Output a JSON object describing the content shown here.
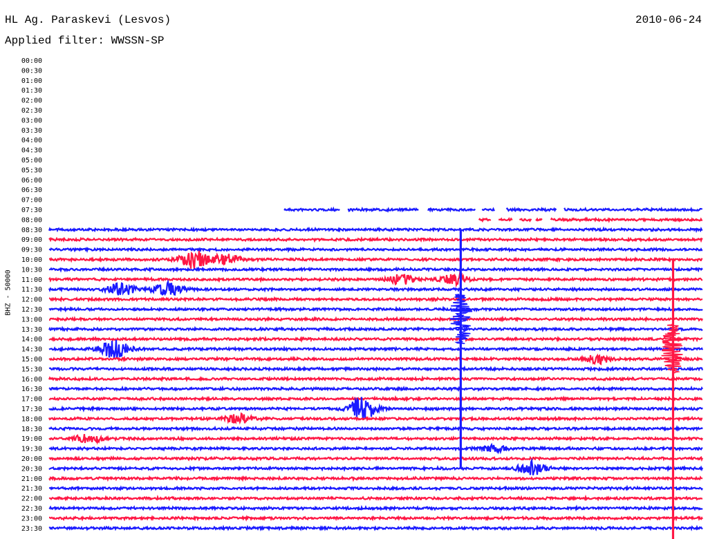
{
  "header": {
    "station": "HL Ag. Paraskevi (Lesvos)",
    "filter": "Applied filter: WWSSN-SP",
    "date": "2010-06-24"
  },
  "chart_data": {
    "type": "line",
    "title": "HL Ag. Paraskevi (Lesvos)",
    "subtitle": "Applied filter: WWSSN-SP",
    "ylabel": "BHZ - 50000",
    "date": "2010-06-24",
    "row_labels": [
      "00:00",
      "00:30",
      "01:00",
      "01:30",
      "02:00",
      "02:30",
      "03:00",
      "03:30",
      "04:00",
      "04:30",
      "05:00",
      "05:30",
      "06:00",
      "06:30",
      "07:00",
      "07:30",
      "08:00",
      "08:30",
      "09:00",
      "09:30",
      "10:00",
      "10:30",
      "11:00",
      "11:30",
      "12:00",
      "12:30",
      "13:00",
      "13:30",
      "14:00",
      "14:30",
      "15:00",
      "15:30",
      "16:00",
      "16:30",
      "17:00",
      "17:30",
      "18:00",
      "18:30",
      "19:00",
      "19:30",
      "20:00",
      "20:30",
      "21:00",
      "21:30",
      "22:00",
      "22:30",
      "23:00",
      "23:30"
    ],
    "row_minutes": 30,
    "record_start": "07:30",
    "record_start_fraction": 0.36,
    "trace_colors": [
      "#ff1744",
      "#1a1aff"
    ],
    "gaps": [
      {
        "row": "07:30",
        "fractions": [
          [
            0.445,
            0.457
          ],
          [
            0.565,
            0.58
          ],
          [
            0.653,
            0.663
          ],
          [
            0.683,
            0.7
          ],
          [
            0.777,
            0.788
          ]
        ]
      },
      {
        "row": "08:00",
        "fractions": [
          [
            0.0,
            0.658
          ],
          [
            0.676,
            0.688
          ],
          [
            0.71,
            0.72
          ],
          [
            0.738,
            0.745
          ],
          [
            0.755,
            0.768
          ]
        ]
      }
    ],
    "events": [
      {
        "row": "10:00",
        "at": 0.22,
        "amplitude": 14
      },
      {
        "row": "10:00",
        "at": 0.27,
        "amplitude": 8
      },
      {
        "row": "11:00",
        "at": 0.54,
        "amplitude": 7
      },
      {
        "row": "11:00",
        "at": 0.62,
        "amplitude": 8
      },
      {
        "row": "11:30",
        "at": 0.11,
        "amplitude": 9
      },
      {
        "row": "11:30",
        "at": 0.18,
        "amplitude": 10
      },
      {
        "row": "14:30",
        "at": 0.1,
        "amplitude": 14
      },
      {
        "row": "15:00",
        "at": 0.84,
        "amplitude": 6
      },
      {
        "row": "17:30",
        "at": 0.48,
        "amplitude": 16
      },
      {
        "row": "18:00",
        "at": 0.29,
        "amplitude": 6
      },
      {
        "row": "19:00",
        "at": 0.06,
        "amplitude": 6
      },
      {
        "row": "19:30",
        "at": 0.68,
        "amplitude": 4
      },
      {
        "row": "20:30",
        "at": 0.74,
        "amplitude": 10
      }
    ],
    "large_events": [
      {
        "time": "13:00",
        "at": 0.63,
        "extends_rows": 15,
        "color": "#1a1aff"
      },
      {
        "time": "14:30",
        "at": 0.955,
        "extends_rows": 48,
        "color": "#ff1744"
      }
    ]
  }
}
